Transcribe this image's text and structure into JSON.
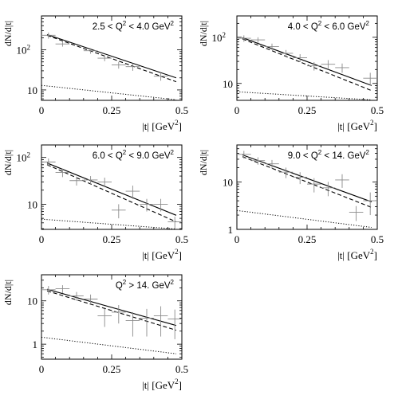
{
  "chart_data": [
    {
      "type": "scatter",
      "annotation": {
        "pre": "2.5 < Q",
        "sup": "2",
        "post": " < 4.0 GeV",
        "post_sup": "2"
      },
      "xlabel": {
        "pre": "|t| [GeV",
        "sup": "2",
        "post": "]"
      },
      "ylabel": "dN/d|t|",
      "xlim": [
        0,
        0.5
      ],
      "ylim": [
        5.5,
        700
      ],
      "yscale": "log",
      "x_ticks": [
        {
          "v": 0,
          "label": "0"
        },
        {
          "v": 0.25,
          "label": "0.25"
        },
        {
          "v": 0.5,
          "label": "0.5"
        }
      ],
      "y_ticks": [
        {
          "v": 10,
          "label": "10"
        },
        {
          "v": 100,
          "label": "10",
          "sup": "2"
        }
      ],
      "data": [
        {
          "x": 0.025,
          "y": 230,
          "xerr": 0.025,
          "yerr": [
            40,
            40
          ]
        },
        {
          "x": 0.075,
          "y": 140,
          "xerr": 0.025,
          "yerr": [
            20,
            20
          ]
        },
        {
          "x": 0.175,
          "y": 95,
          "xerr": 0.025,
          "yerr": [
            15,
            15
          ]
        },
        {
          "x": 0.225,
          "y": 62,
          "xerr": 0.025,
          "yerr": [
            10,
            10
          ]
        },
        {
          "x": 0.275,
          "y": 42,
          "xerr": 0.025,
          "yerr": [
            8,
            8
          ]
        },
        {
          "x": 0.325,
          "y": 38,
          "xerr": 0.025,
          "yerr": [
            8,
            8
          ]
        },
        {
          "x": 0.425,
          "y": 22,
          "xerr": 0.025,
          "yerr": [
            5,
            5
          ]
        }
      ],
      "solid": [
        [
          0.02,
          240
        ],
        [
          0.48,
          20
        ]
      ],
      "dashed": [
        [
          0.02,
          230
        ],
        [
          0.48,
          16
        ]
      ],
      "dotted": [
        [
          0.0,
          13
        ],
        [
          0.48,
          5.7
        ]
      ]
    },
    {
      "type": "scatter",
      "annotation": {
        "pre": "4.0 < Q",
        "sup": "2",
        "post": " < 6.0 GeV",
        "post_sup": "2"
      },
      "xlabel": {
        "pre": "|t| [GeV",
        "sup": "2",
        "post": "]"
      },
      "ylabel": "dN/d|t|",
      "xlim": [
        0,
        0.5
      ],
      "ylim": [
        4.3,
        290
      ],
      "yscale": "log",
      "x_ticks": [
        {
          "v": 0,
          "label": "0"
        },
        {
          "v": 0.25,
          "label": "0.25"
        },
        {
          "v": 0.5,
          "label": "0.5"
        }
      ],
      "y_ticks": [
        {
          "v": 10,
          "label": "10"
        },
        {
          "v": 100,
          "label": "10",
          "sup": "2"
        }
      ],
      "data": [
        {
          "x": 0.025,
          "y": 95,
          "xerr": 0.025,
          "yerr": [
            15,
            15
          ]
        },
        {
          "x": 0.075,
          "y": 88,
          "xerr": 0.025,
          "yerr": [
            12,
            12
          ]
        },
        {
          "x": 0.125,
          "y": 63,
          "xerr": 0.025,
          "yerr": [
            10,
            10
          ]
        },
        {
          "x": 0.175,
          "y": 45,
          "xerr": 0.025,
          "yerr": [
            8,
            8
          ]
        },
        {
          "x": 0.225,
          "y": 36,
          "xerr": 0.025,
          "yerr": [
            7,
            7
          ]
        },
        {
          "x": 0.275,
          "y": 24,
          "xerr": 0.025,
          "yerr": [
            5,
            5
          ]
        },
        {
          "x": 0.325,
          "y": 26,
          "xerr": 0.025,
          "yerr": [
            6,
            6
          ]
        },
        {
          "x": 0.375,
          "y": 22,
          "xerr": 0.025,
          "yerr": [
            5,
            5
          ]
        },
        {
          "x": 0.475,
          "y": 13,
          "xerr": 0.025,
          "yerr": [
            4,
            4
          ]
        }
      ],
      "solid": [
        [
          0.02,
          98
        ],
        [
          0.48,
          9
        ]
      ],
      "dashed": [
        [
          0.02,
          92
        ],
        [
          0.48,
          7
        ]
      ],
      "dotted": [
        [
          0.0,
          6.6
        ],
        [
          0.48,
          4.4
        ]
      ]
    },
    {
      "type": "scatter",
      "annotation": {
        "pre": "6.0 < Q",
        "sup": "2",
        "post": " < 9.0 GeV",
        "post_sup": "2"
      },
      "xlabel": {
        "pre": "|t| [GeV",
        "sup": "2",
        "post": "]"
      },
      "ylabel": "dN/d|t|",
      "xlim": [
        0,
        0.5
      ],
      "ylim": [
        2.9,
        185
      ],
      "yscale": "log",
      "x_ticks": [
        {
          "v": 0,
          "label": "0"
        },
        {
          "v": 0.25,
          "label": "0.25"
        },
        {
          "v": 0.5,
          "label": "0.5"
        }
      ],
      "y_ticks": [
        {
          "v": 10,
          "label": "10"
        },
        {
          "v": 100,
          "label": "10",
          "sup": "2"
        }
      ],
      "data": [
        {
          "x": 0.025,
          "y": 80,
          "xerr": 0.025,
          "yerr": [
            15,
            15
          ]
        },
        {
          "x": 0.075,
          "y": 48,
          "xerr": 0.025,
          "yerr": [
            10,
            10
          ]
        },
        {
          "x": 0.125,
          "y": 32,
          "xerr": 0.025,
          "yerr": [
            7,
            7
          ]
        },
        {
          "x": 0.175,
          "y": 33,
          "xerr": 0.025,
          "yerr": [
            7,
            7
          ]
        },
        {
          "x": 0.225,
          "y": 30,
          "xerr": 0.025,
          "yerr": [
            7,
            7
          ]
        },
        {
          "x": 0.275,
          "y": 7.5,
          "xerr": 0.025,
          "yerr": [
            2.5,
            2.5
          ]
        },
        {
          "x": 0.325,
          "y": 19,
          "xerr": 0.025,
          "yerr": [
            6,
            6
          ]
        },
        {
          "x": 0.375,
          "y": 10,
          "xerr": 0.025,
          "yerr": [
            3,
            3
          ]
        },
        {
          "x": 0.425,
          "y": 10,
          "xerr": 0.025,
          "yerr": [
            3,
            3
          ]
        },
        {
          "x": 0.475,
          "y": 4.2,
          "xerr": 0.025,
          "yerr": [
            1.2,
            1.2
          ]
        }
      ],
      "solid": [
        [
          0.02,
          76
        ],
        [
          0.48,
          5.8
        ]
      ],
      "dashed": [
        [
          0.02,
          70
        ],
        [
          0.48,
          4.2
        ]
      ],
      "dotted": [
        [
          0.0,
          4.8
        ],
        [
          0.48,
          2.95
        ]
      ]
    },
    {
      "type": "scatter",
      "annotation": {
        "pre": "9.0 < Q",
        "sup": "2",
        "post": " < 14. GeV",
        "post_sup": "2"
      },
      "xlabel": {
        "pre": "|t| [GeV",
        "sup": "2",
        "post": "]"
      },
      "ylabel": "dN/d|t|",
      "xlim": [
        0,
        0.5
      ],
      "ylim": [
        1.0,
        60
      ],
      "yscale": "log",
      "x_ticks": [
        {
          "v": 0,
          "label": "0"
        },
        {
          "v": 0.25,
          "label": "0.25"
        },
        {
          "v": 0.5,
          "label": "0.5"
        }
      ],
      "y_ticks": [
        {
          "v": 1,
          "label": "1"
        },
        {
          "v": 10,
          "label": "10"
        }
      ],
      "data": [
        {
          "x": 0.025,
          "y": 38,
          "xerr": 0.025,
          "yerr": [
            7,
            7
          ]
        },
        {
          "x": 0.075,
          "y": 28,
          "xerr": 0.025,
          "yerr": [
            5,
            5
          ]
        },
        {
          "x": 0.125,
          "y": 24,
          "xerr": 0.025,
          "yerr": [
            5,
            5
          ]
        },
        {
          "x": 0.175,
          "y": 16,
          "xerr": 0.025,
          "yerr": [
            4,
            4
          ]
        },
        {
          "x": 0.225,
          "y": 12.5,
          "xerr": 0.025,
          "yerr": [
            3.5,
            3.5
          ]
        },
        {
          "x": 0.275,
          "y": 9,
          "xerr": 0.025,
          "yerr": [
            3,
            3
          ]
        },
        {
          "x": 0.325,
          "y": 7.5,
          "xerr": 0.025,
          "yerr": [
            2.5,
            2.5
          ]
        },
        {
          "x": 0.375,
          "y": 11,
          "xerr": 0.025,
          "yerr": [
            3.5,
            3.5
          ]
        },
        {
          "x": 0.425,
          "y": 2.3,
          "xerr": 0.025,
          "yerr": [
            0.8,
            0.8
          ]
        },
        {
          "x": 0.475,
          "y": 4,
          "xerr": 0.025,
          "yerr": [
            2,
            2
          ]
        }
      ],
      "solid": [
        [
          0.02,
          37
        ],
        [
          0.48,
          3.8
        ]
      ],
      "dashed": [
        [
          0.02,
          34
        ],
        [
          0.48,
          2.9
        ]
      ],
      "dotted": [
        [
          0.0,
          2.5
        ],
        [
          0.48,
          1.1
        ]
      ]
    },
    {
      "type": "scatter",
      "annotation": {
        "pre": "Q",
        "sup": "2",
        "post": " > 14. GeV",
        "post_sup": "2"
      },
      "xlabel": {
        "pre": "|t| [GeV",
        "sup": "2",
        "post": "]"
      },
      "ylabel": "dN/d|t|",
      "xlim": [
        0,
        0.5
      ],
      "ylim": [
        0.45,
        40
      ],
      "yscale": "log",
      "x_ticks": [
        {
          "v": 0,
          "label": "0"
        },
        {
          "v": 0.25,
          "label": "0.25"
        },
        {
          "v": 0.5,
          "label": "0.5"
        }
      ],
      "y_ticks": [
        {
          "v": 1,
          "label": "1"
        },
        {
          "v": 10,
          "label": "10"
        }
      ],
      "data": [
        {
          "x": 0.025,
          "y": 18,
          "xerr": 0.025,
          "yerr": [
            4,
            4
          ]
        },
        {
          "x": 0.075,
          "y": 19,
          "xerr": 0.025,
          "yerr": [
            4,
            4
          ]
        },
        {
          "x": 0.125,
          "y": 13,
          "xerr": 0.025,
          "yerr": [
            3,
            3
          ]
        },
        {
          "x": 0.175,
          "y": 11,
          "xerr": 0.025,
          "yerr": [
            3,
            3
          ]
        },
        {
          "x": 0.225,
          "y": 4.5,
          "xerr": 0.025,
          "yerr": [
            2,
            2
          ]
        },
        {
          "x": 0.275,
          "y": 5.5,
          "xerr": 0.025,
          "yerr": [
            2.5,
            2.5
          ]
        },
        {
          "x": 0.325,
          "y": 3.5,
          "xerr": 0.025,
          "yerr": [
            2,
            2
          ]
        },
        {
          "x": 0.375,
          "y": 4,
          "xerr": 0.025,
          "yerr": [
            2.5,
            2.5
          ]
        },
        {
          "x": 0.425,
          "y": 4.5,
          "xerr": 0.025,
          "yerr": [
            3,
            3
          ]
        },
        {
          "x": 0.475,
          "y": 3.8,
          "xerr": 0.025,
          "yerr": [
            2.5,
            2.5
          ]
        }
      ],
      "solid": [
        [
          0.02,
          18.5
        ],
        [
          0.48,
          2.7
        ]
      ],
      "dashed": [
        [
          0.02,
          17
        ],
        [
          0.48,
          2.1
        ]
      ],
      "dotted": [
        [
          0.0,
          1.45
        ],
        [
          0.48,
          0.6
        ]
      ]
    }
  ]
}
